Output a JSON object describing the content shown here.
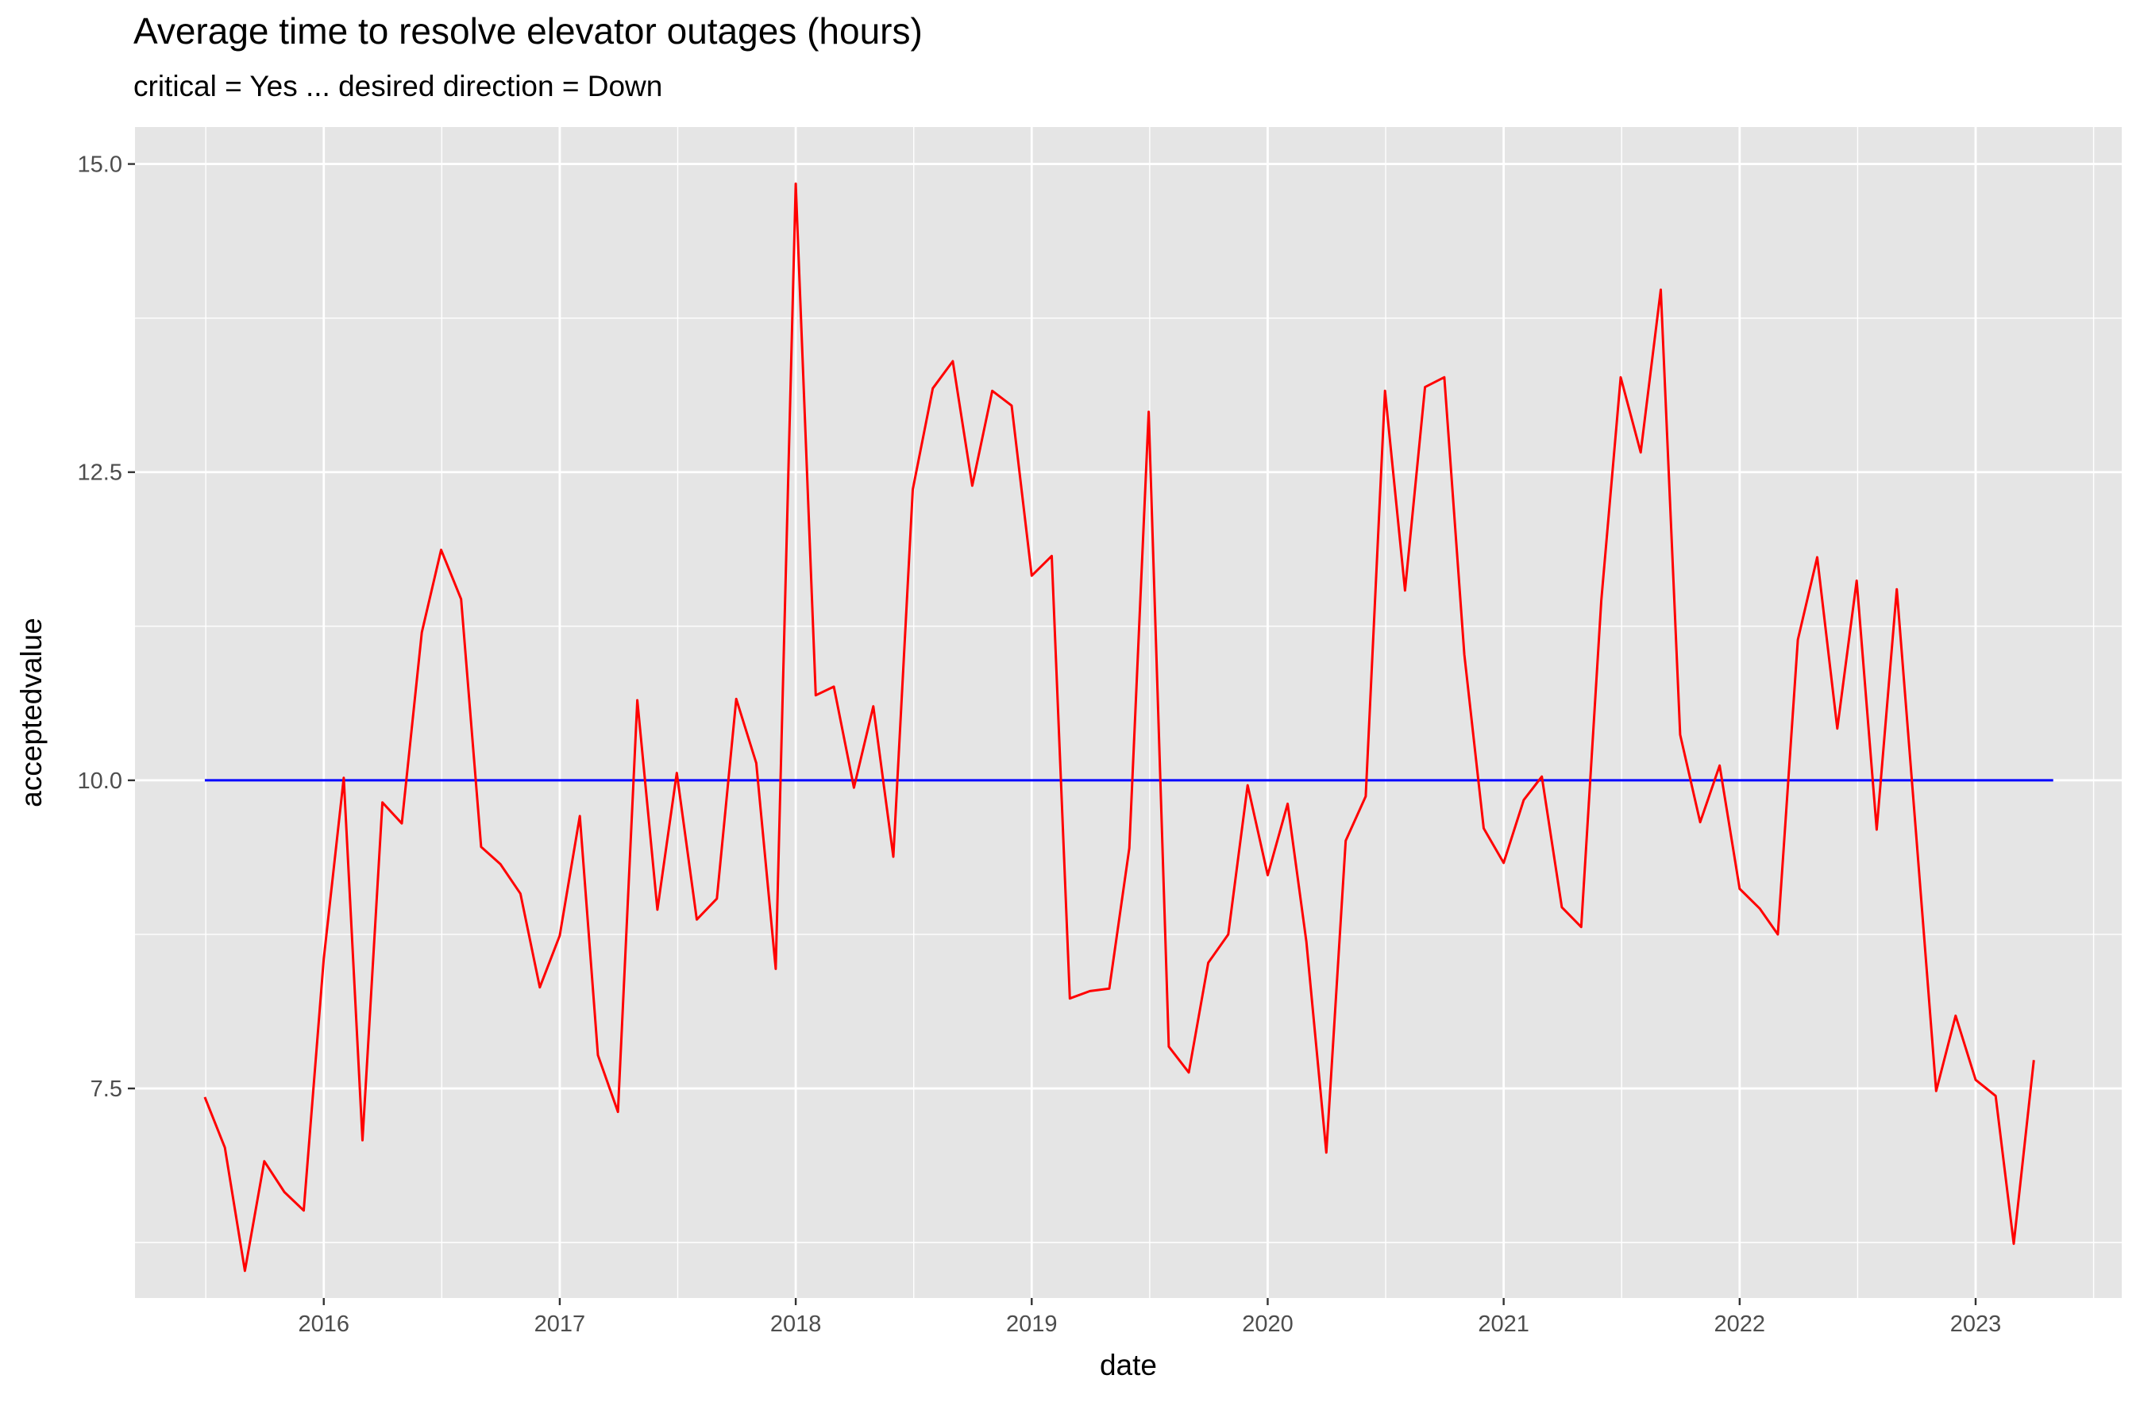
{
  "chart_data": {
    "type": "line",
    "title": "Average time to resolve elevator outages (hours)",
    "subtitle": "critical = Yes ... desired direction = Down",
    "xlabel": "date",
    "ylabel": "acceptedvalue",
    "xlim": [
      "2015-03-15",
      "2023-08-15"
    ],
    "ylim": [
      5.8,
      15.3
    ],
    "grid": true,
    "x_ticks": [
      "2016",
      "2017",
      "2018",
      "2019",
      "2020",
      "2021",
      "2022",
      "2023"
    ],
    "y_ticks": [
      "7.5",
      "10.0",
      "12.5",
      "15.0"
    ],
    "colors": {
      "panel": "#e5e5e5",
      "grid": "#ffffff",
      "series": "#ff0000",
      "reference": "#0000ff"
    },
    "series": [
      {
        "color": "#ff0000",
        "x": [
          "2015-07-01",
          "2015-08-01",
          "2015-09-01",
          "2015-10-01",
          "2015-11-01",
          "2015-12-01",
          "2016-01-01",
          "2016-02-01",
          "2016-03-01",
          "2016-04-01",
          "2016-05-01",
          "2016-06-01",
          "2016-07-01",
          "2016-08-01",
          "2016-09-01",
          "2016-10-01",
          "2016-11-01",
          "2016-12-01",
          "2017-01-01",
          "2017-02-01",
          "2017-03-01",
          "2017-04-01",
          "2017-05-01",
          "2017-06-01",
          "2017-07-01",
          "2017-08-01",
          "2017-09-01",
          "2017-10-01",
          "2017-11-01",
          "2017-12-01",
          "2018-01-01",
          "2018-02-01",
          "2018-03-01",
          "2018-04-01",
          "2018-05-01",
          "2018-06-01",
          "2018-07-01",
          "2018-08-01",
          "2018-09-01",
          "2018-10-01",
          "2018-11-01",
          "2018-12-01",
          "2019-01-01",
          "2019-02-01",
          "2019-03-01",
          "2019-04-01",
          "2019-05-01",
          "2019-06-01",
          "2019-07-01",
          "2019-08-01",
          "2019-09-01",
          "2019-10-01",
          "2019-11-01",
          "2019-12-01",
          "2020-01-01",
          "2020-02-01",
          "2020-03-01",
          "2020-04-01",
          "2020-05-01",
          "2020-06-01",
          "2020-07-01",
          "2020-08-01",
          "2020-09-01",
          "2020-10-01",
          "2020-11-01",
          "2020-12-01",
          "2021-01-01",
          "2021-02-01",
          "2021-03-01",
          "2021-04-01",
          "2021-05-01",
          "2021-06-01",
          "2021-07-01",
          "2021-08-01",
          "2021-09-01",
          "2021-10-01",
          "2021-11-01",
          "2021-12-01",
          "2022-01-01",
          "2022-02-01",
          "2022-03-01",
          "2022-04-01",
          "2022-05-01",
          "2022-06-01",
          "2022-07-01",
          "2022-08-01",
          "2022-09-01",
          "2022-10-01",
          "2022-11-01",
          "2022-12-01",
          "2023-01-01",
          "2023-02-01",
          "2023-03-01",
          "2023-04-01"
        ],
        "y": [
          7.43,
          7.02,
          6.02,
          6.91,
          6.66,
          6.51,
          8.55,
          10.02,
          7.08,
          9.82,
          9.65,
          11.2,
          11.87,
          11.47,
          9.46,
          9.32,
          9.08,
          8.32,
          8.74,
          9.71,
          7.77,
          7.31,
          10.65,
          8.95,
          10.06,
          8.87,
          9.04,
          10.66,
          10.14,
          8.47,
          14.84,
          10.69,
          10.76,
          9.94,
          10.6,
          9.38,
          12.36,
          13.18,
          13.4,
          12.39,
          13.16,
          13.04,
          11.66,
          11.82,
          8.23,
          8.29,
          8.31,
          9.45,
          12.99,
          7.84,
          7.63,
          8.52,
          8.75,
          9.96,
          9.23,
          9.81,
          8.69,
          6.98,
          9.51,
          9.87,
          13.16,
          11.54,
          13.19,
          13.27,
          11.02,
          9.61,
          9.33,
          9.84,
          10.03,
          8.97,
          8.81,
          11.46,
          13.27,
          12.66,
          13.98,
          10.37,
          9.66,
          10.12,
          9.12,
          8.96,
          8.75,
          11.14,
          11.81,
          10.42,
          11.62,
          9.6,
          11.55,
          9.56,
          7.48,
          8.09,
          7.57,
          7.44,
          6.24,
          7.73
        ]
      }
    ],
    "reference_line": {
      "y": 10.0,
      "x_start": "2015-07-01",
      "x_end": "2023-05-01",
      "color": "#0000ff"
    }
  }
}
